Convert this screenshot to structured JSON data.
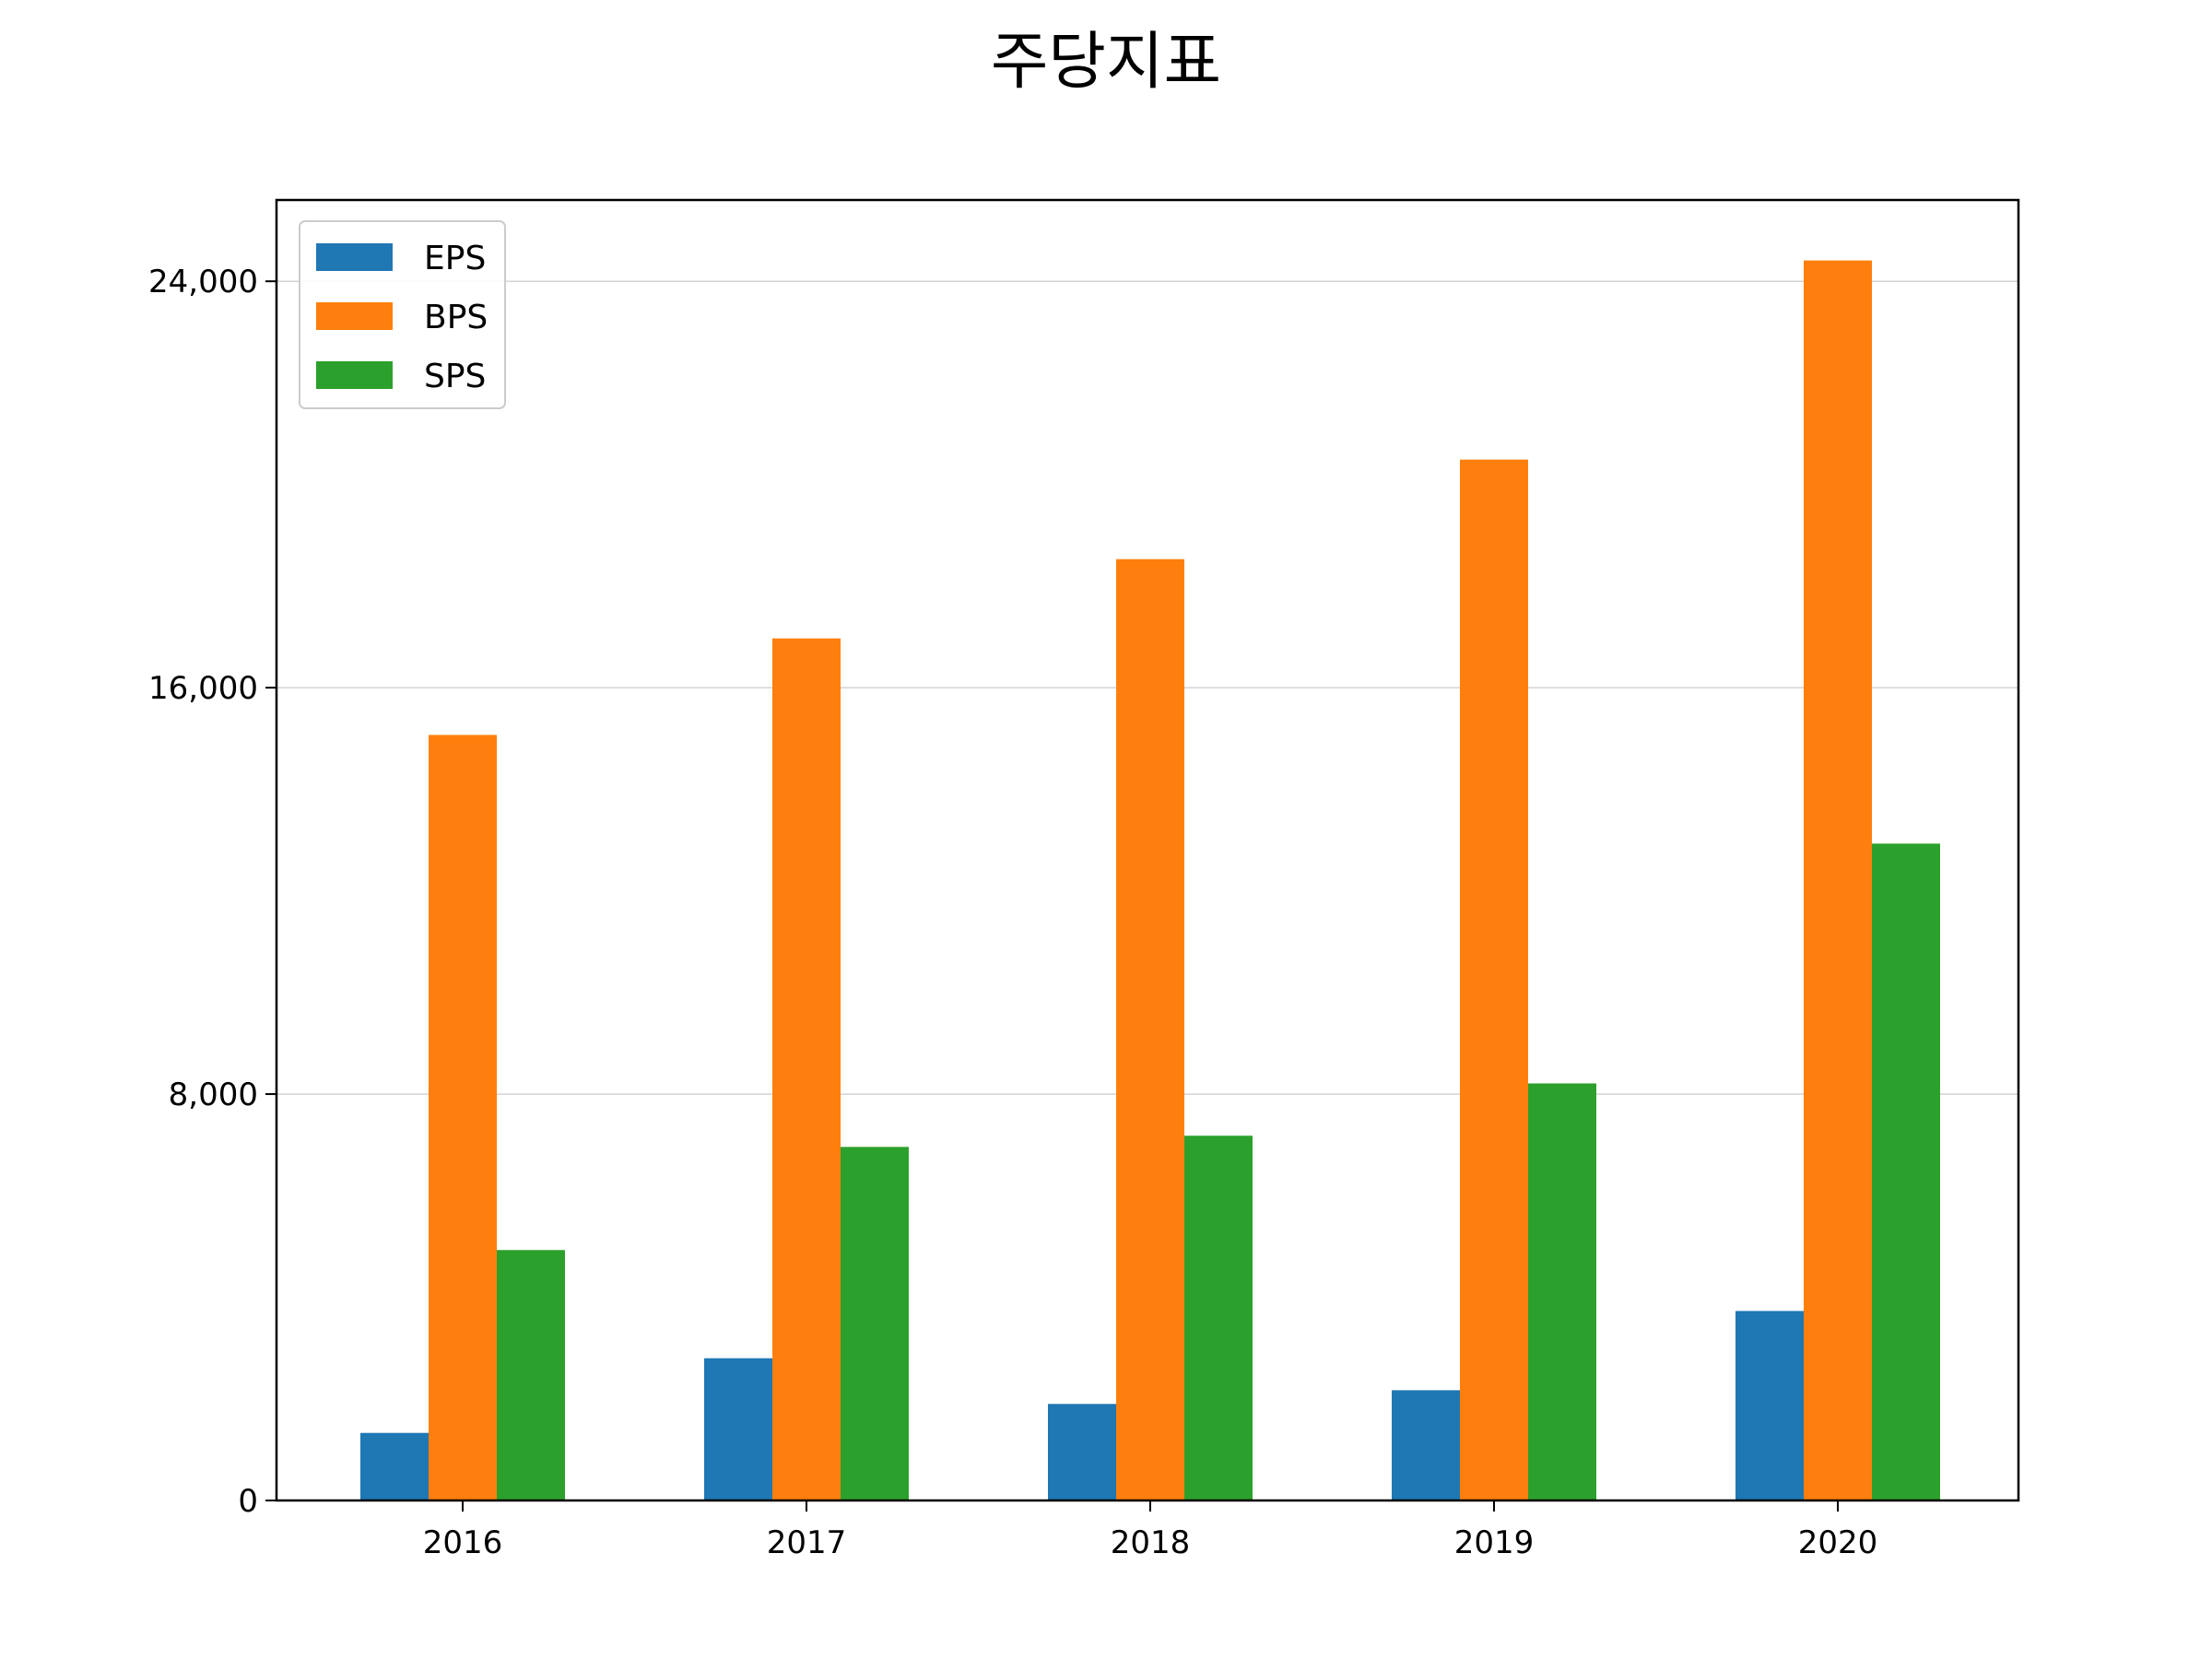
{
  "chart_data": {
    "type": "bar",
    "title": "주당지표",
    "xlabel": "",
    "ylabel": "",
    "categories": [
      "2016",
      "2017",
      "2018",
      "2019",
      "2020"
    ],
    "series": [
      {
        "name": "EPS",
        "color": "#1f77b4",
        "values": [
          1330,
          2800,
          1900,
          2170,
          3730
        ]
      },
      {
        "name": "BPS",
        "color": "#ff7f0e",
        "values": [
          15070,
          16970,
          18530,
          20490,
          24410
        ]
      },
      {
        "name": "SPS",
        "color": "#2ca02c",
        "values": [
          4930,
          6960,
          7180,
          8210,
          12930
        ]
      }
    ],
    "ylim": [
      0,
      25600
    ],
    "yticks": [
      0,
      8000,
      16000,
      24000
    ],
    "ytick_labels": [
      "0",
      "8,000",
      "16,000",
      "24,000"
    ],
    "grid": "y",
    "legend": "top-left"
  }
}
